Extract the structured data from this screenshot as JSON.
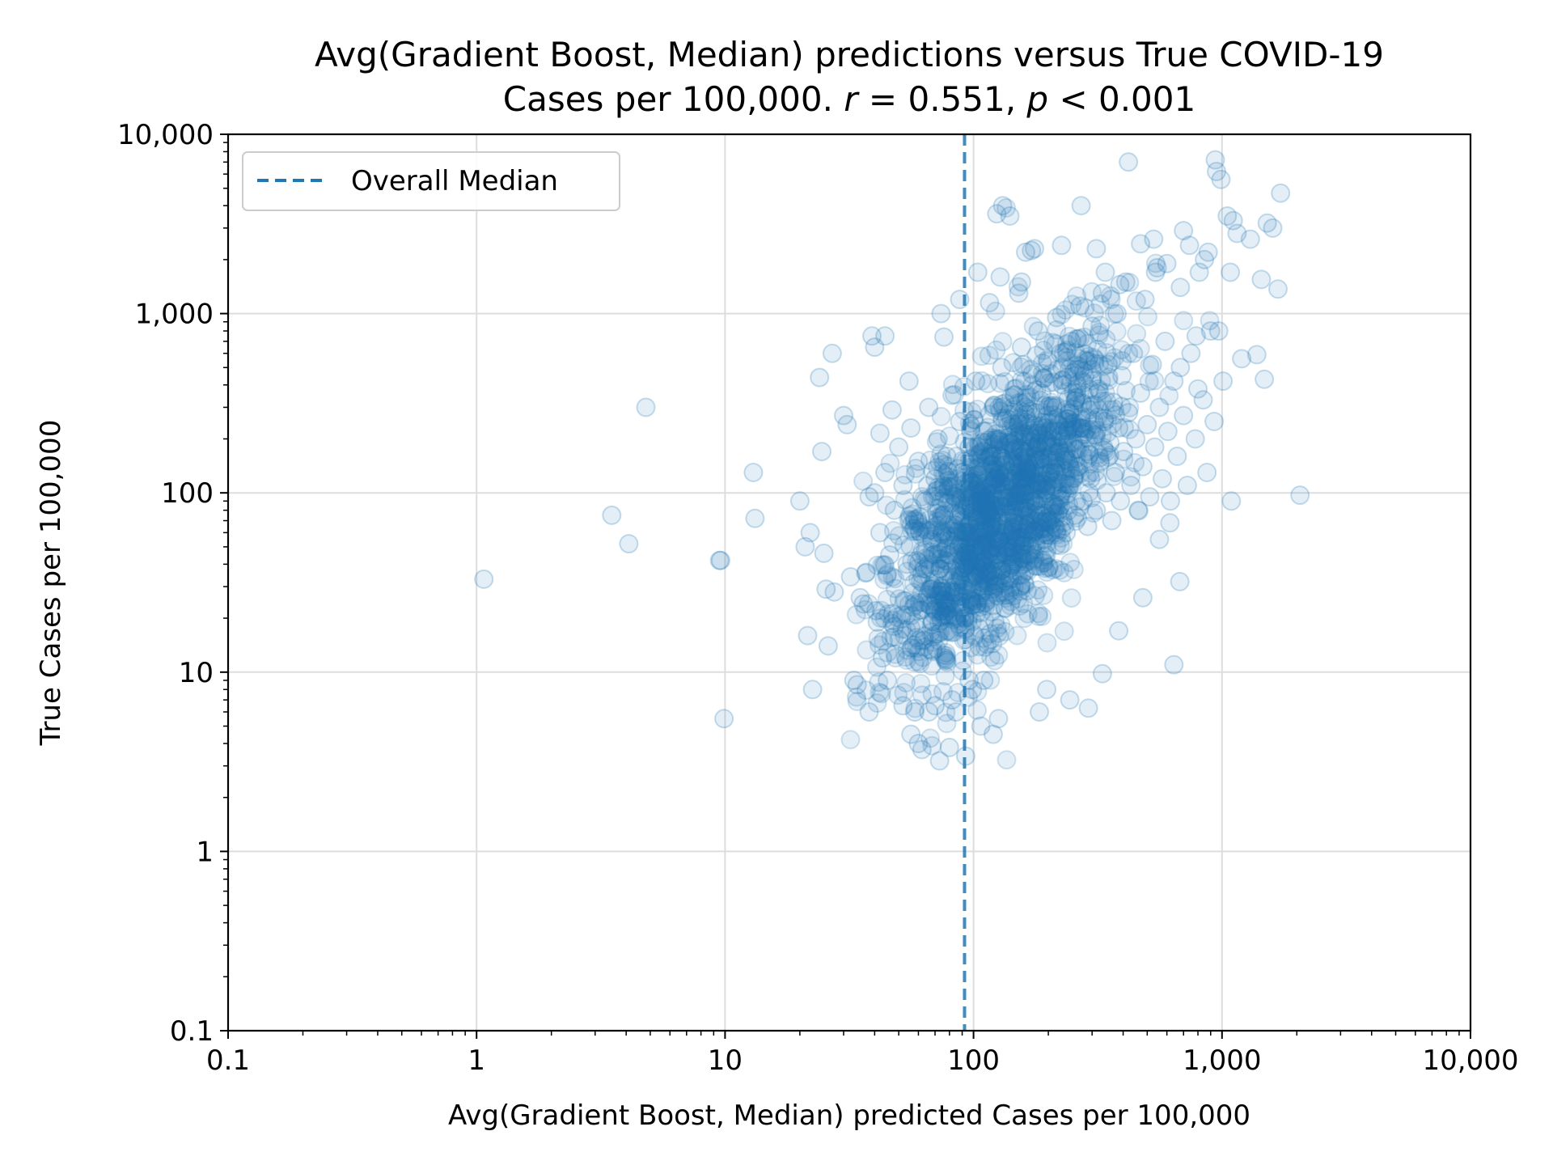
{
  "chart_data": {
    "type": "scatter",
    "title_line1": "Avg(Gradient Boost, Median) predictions versus True COVID-19",
    "title_line2_prefix": "Cases per 100,000. ",
    "title_r_symbol": "r",
    "title_r_value": " = 0.551, ",
    "title_p_symbol": "p",
    "title_p_value": " < 0.001",
    "xlabel": "Avg(Gradient Boost, Median) predicted Cases per 100,000",
    "ylabel": "True Cases per 100,000",
    "xscale": "log",
    "yscale": "log",
    "xlim": [
      0.1,
      10000
    ],
    "ylim": [
      0.1,
      10000
    ],
    "xticks": [
      {
        "value": 0.1,
        "label": "0.1"
      },
      {
        "value": 1,
        "label": "1"
      },
      {
        "value": 10,
        "label": "10"
      },
      {
        "value": 100,
        "label": "100"
      },
      {
        "value": 1000,
        "label": "1,000"
      },
      {
        "value": 10000,
        "label": "10,000"
      }
    ],
    "yticks": [
      {
        "value": 0.1,
        "label": "0.1"
      },
      {
        "value": 1,
        "label": "1"
      },
      {
        "value": 10,
        "label": "10"
      },
      {
        "value": 100,
        "label": "100"
      },
      {
        "value": 1000,
        "label": "1,000"
      },
      {
        "value": 10000,
        "label": "10,000"
      }
    ],
    "grid": true,
    "legend": {
      "placement": "top-left",
      "entries": [
        {
          "label": "Overall Median",
          "style": "dashed-line",
          "color": "#1f77b4"
        }
      ]
    },
    "reference_lines": [
      {
        "orientation": "vertical",
        "x": 92,
        "label": "Overall Median",
        "color": "#1f77b4",
        "style": "dashed"
      }
    ],
    "marker": {
      "shape": "circle",
      "fill": "#1f77b4",
      "alpha": 0.12
    },
    "points": [
      [
        1.07,
        33
      ],
      [
        3.5,
        75
      ],
      [
        4.1,
        52
      ],
      [
        4.8,
        300
      ],
      [
        9.5,
        42
      ],
      [
        9.6,
        42
      ],
      [
        9.9,
        5.5
      ],
      [
        13,
        130
      ],
      [
        13.2,
        72
      ],
      [
        20,
        90
      ],
      [
        21,
        50
      ],
      [
        21.5,
        16
      ],
      [
        22,
        60
      ],
      [
        22.5,
        8
      ],
      [
        24,
        440
      ],
      [
        24.5,
        170
      ],
      [
        25,
        46
      ],
      [
        25.5,
        29
      ],
      [
        26,
        14
      ],
      [
        27,
        600
      ],
      [
        27.5,
        28
      ],
      [
        30,
        270
      ],
      [
        31,
        240
      ],
      [
        32,
        34
      ],
      [
        33,
        9
      ],
      [
        34,
        8.5
      ],
      [
        35,
        26
      ],
      [
        36,
        24
      ],
      [
        37,
        36
      ],
      [
        38,
        6
      ],
      [
        39,
        750
      ],
      [
        40,
        650
      ],
      [
        40.5,
        22
      ],
      [
        41,
        19
      ],
      [
        42,
        215
      ],
      [
        43,
        12
      ],
      [
        44,
        750
      ],
      [
        45,
        9
      ],
      [
        47,
        290
      ],
      [
        48,
        18
      ],
      [
        52,
        6.5
      ],
      [
        55,
        420
      ],
      [
        56,
        4.5
      ],
      [
        58,
        6
      ],
      [
        60,
        4
      ],
      [
        62,
        3.7
      ],
      [
        66,
        6
      ],
      [
        70,
        6.5
      ],
      [
        73,
        3.2
      ],
      [
        74,
        1000
      ],
      [
        76,
        740
      ],
      [
        80,
        3.8
      ],
      [
        82,
        7
      ],
      [
        85,
        6
      ],
      [
        88,
        1200
      ],
      [
        93,
        3.4
      ],
      [
        96,
        9
      ],
      [
        99,
        8
      ],
      [
        104,
        1700
      ],
      [
        107,
        5
      ],
      [
        110,
        9
      ],
      [
        116,
        1150
      ],
      [
        120,
        4.5
      ],
      [
        124,
        3600
      ],
      [
        126,
        5.5
      ],
      [
        128,
        1600
      ],
      [
        131,
        4000
      ],
      [
        140,
        3500
      ],
      [
        152,
        1300
      ],
      [
        156,
        1500
      ],
      [
        162,
        2200
      ],
      [
        171,
        2250
      ],
      [
        176,
        2300
      ],
      [
        184,
        6
      ],
      [
        197,
        8
      ],
      [
        226,
        2400
      ],
      [
        244,
        7
      ],
      [
        271,
        4000
      ],
      [
        290,
        6.3
      ],
      [
        312,
        2300
      ],
      [
        330,
        9.8
      ],
      [
        339,
        1700
      ],
      [
        384,
        17
      ],
      [
        388,
        1450
      ],
      [
        420,
        7000
      ],
      [
        470,
        2450
      ],
      [
        480,
        26
      ],
      [
        531,
        2600
      ],
      [
        540,
        1700
      ],
      [
        560,
        55
      ],
      [
        600,
        1900
      ],
      [
        617,
        68
      ],
      [
        640,
        11
      ],
      [
        676,
        32
      ],
      [
        680,
        500
      ],
      [
        700,
        2900
      ],
      [
        740,
        2400
      ],
      [
        787,
        750
      ],
      [
        800,
        380
      ],
      [
        850,
        2000
      ],
      [
        880,
        2200
      ],
      [
        940,
        7200
      ],
      [
        950,
        6200
      ],
      [
        970,
        800
      ],
      [
        990,
        5600
      ],
      [
        1010,
        420
      ],
      [
        1050,
        3500
      ],
      [
        1080,
        1700
      ],
      [
        1090,
        90
      ],
      [
        1110,
        3300
      ],
      [
        1150,
        2800
      ],
      [
        1200,
        560
      ],
      [
        1300,
        2600
      ],
      [
        1380,
        590
      ],
      [
        1440,
        1550
      ],
      [
        1480,
        430
      ],
      [
        1520,
        3200
      ],
      [
        1600,
        3000
      ],
      [
        1680,
        1370
      ],
      [
        1720,
        4700
      ],
      [
        2060,
        97
      ],
      [
        38,
        95
      ],
      [
        40,
        100
      ],
      [
        42,
        60
      ],
      [
        44,
        130
      ],
      [
        46,
        45
      ],
      [
        48,
        80
      ],
      [
        50,
        180
      ],
      [
        52,
        110
      ],
      [
        54,
        40
      ],
      [
        56,
        230
      ],
      [
        58,
        70
      ],
      [
        60,
        150
      ],
      [
        62,
        35
      ],
      [
        64,
        90
      ],
      [
        66,
        300
      ],
      [
        68,
        55
      ],
      [
        70,
        120
      ],
      [
        72,
        200
      ],
      [
        74,
        28
      ],
      [
        76,
        75
      ],
      [
        78,
        160
      ],
      [
        80,
        45
      ],
      [
        82,
        350
      ],
      [
        84,
        95
      ],
      [
        86,
        60
      ],
      [
        88,
        250
      ],
      [
        90,
        130
      ],
      [
        92,
        40
      ],
      [
        94,
        85
      ],
      [
        96,
        180
      ],
      [
        98,
        25
      ],
      [
        100,
        110
      ],
      [
        102,
        420
      ],
      [
        104,
        70
      ],
      [
        106,
        140
      ],
      [
        108,
        50
      ],
      [
        110,
        220
      ],
      [
        112,
        90
      ],
      [
        114,
        30
      ],
      [
        116,
        160
      ],
      [
        118,
        65
      ],
      [
        120,
        300
      ],
      [
        122,
        120
      ],
      [
        124,
        45
      ],
      [
        126,
        200
      ],
      [
        128,
        85
      ],
      [
        130,
        500
      ],
      [
        132,
        150
      ],
      [
        134,
        60
      ],
      [
        136,
        260
      ],
      [
        138,
        110
      ],
      [
        140,
        38
      ],
      [
        142,
        190
      ],
      [
        144,
        80
      ],
      [
        146,
        380
      ],
      [
        148,
        140
      ],
      [
        150,
        55
      ],
      [
        152,
        240
      ],
      [
        154,
        100
      ],
      [
        156,
        650
      ],
      [
        158,
        170
      ],
      [
        160,
        70
      ],
      [
        162,
        320
      ],
      [
        164,
        130
      ],
      [
        166,
        45
      ],
      [
        168,
        210
      ],
      [
        170,
        90
      ],
      [
        172,
        460
      ],
      [
        174,
        160
      ],
      [
        176,
        62
      ],
      [
        178,
        280
      ],
      [
        180,
        115
      ],
      [
        182,
        800
      ],
      [
        184,
        190
      ],
      [
        186,
        75
      ],
      [
        188,
        360
      ],
      [
        190,
        145
      ],
      [
        192,
        55
      ],
      [
        194,
        230
      ],
      [
        196,
        100
      ],
      [
        198,
        550
      ],
      [
        200,
        180
      ],
      [
        204,
        70
      ],
      [
        208,
        300
      ],
      [
        212,
        130
      ],
      [
        216,
        950
      ],
      [
        220,
        220
      ],
      [
        224,
        85
      ],
      [
        228,
        400
      ],
      [
        232,
        160
      ],
      [
        236,
        60
      ],
      [
        240,
        260
      ],
      [
        244,
        110
      ],
      [
        248,
        700
      ],
      [
        252,
        190
      ],
      [
        256,
        75
      ],
      [
        260,
        340
      ],
      [
        264,
        140
      ],
      [
        268,
        1100
      ],
      [
        272,
        230
      ],
      [
        276,
        90
      ],
      [
        280,
        450
      ],
      [
        284,
        170
      ],
      [
        288,
        65
      ],
      [
        292,
        290
      ],
      [
        296,
        120
      ],
      [
        300,
        850
      ],
      [
        306,
        210
      ],
      [
        312,
        80
      ],
      [
        318,
        380
      ],
      [
        324,
        150
      ],
      [
        330,
        1300
      ],
      [
        336,
        250
      ],
      [
        342,
        100
      ],
      [
        348,
        520
      ],
      [
        354,
        190
      ],
      [
        360,
        70
      ],
      [
        366,
        320
      ],
      [
        372,
        130
      ],
      [
        378,
        1000
      ],
      [
        384,
        230
      ],
      [
        390,
        90
      ],
      [
        396,
        450
      ],
      [
        402,
        170
      ],
      [
        410,
        1500
      ],
      [
        420,
        280
      ],
      [
        430,
        110
      ],
      [
        440,
        600
      ],
      [
        450,
        200
      ],
      [
        460,
        80
      ],
      [
        470,
        360
      ],
      [
        480,
        140
      ],
      [
        490,
        1200
      ],
      [
        500,
        240
      ],
      [
        512,
        95
      ],
      [
        524,
        520
      ],
      [
        536,
        180
      ],
      [
        548,
        1800
      ],
      [
        560,
        300
      ],
      [
        575,
        120
      ],
      [
        590,
        700
      ],
      [
        605,
        220
      ],
      [
        620,
        90
      ],
      [
        640,
        420
      ],
      [
        660,
        160
      ],
      [
        680,
        1400
      ],
      [
        700,
        270
      ],
      [
        725,
        110
      ],
      [
        750,
        600
      ],
      [
        780,
        200
      ],
      [
        810,
        1700
      ],
      [
        840,
        330
      ],
      [
        870,
        130
      ],
      [
        900,
        800
      ],
      [
        930,
        250
      ]
    ]
  }
}
